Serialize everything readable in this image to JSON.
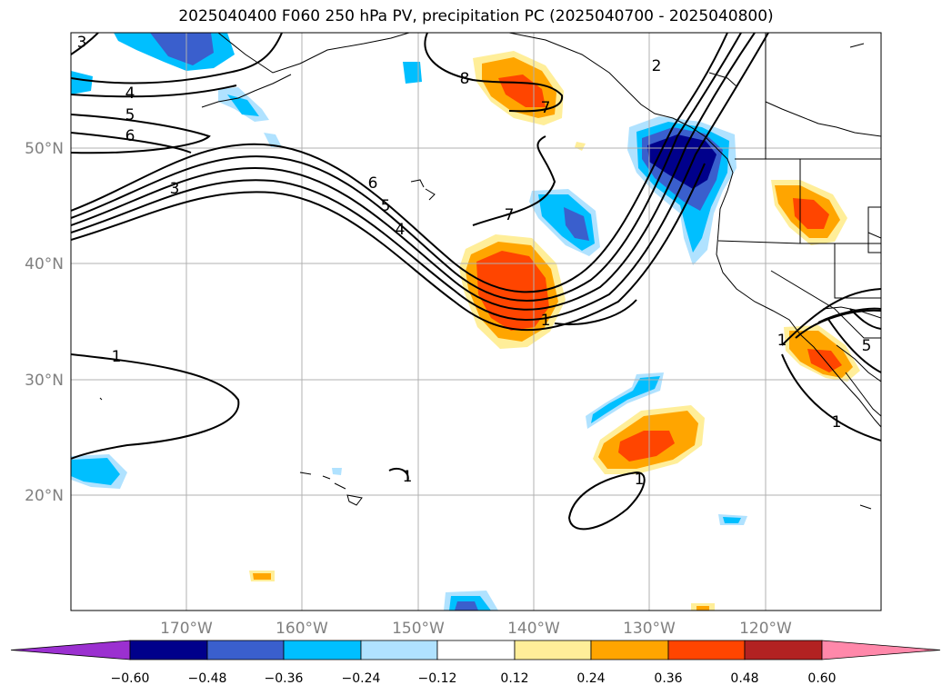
{
  "title": "2025040400 F060 250 hPa PV, precipitation PC (2025040700 - 2025040800)",
  "lat_labels": [
    "50°N",
    "40°N",
    "30°N",
    "20°N"
  ],
  "lon_labels": [
    "170°W",
    "160°W",
    "150°W",
    "140°W",
    "130°W",
    "120°W"
  ],
  "colorbar": {
    "colors": [
      "#9b30d0",
      "#00008b",
      "#3a5fcd",
      "#00bfff",
      "#b0e2ff",
      "#ffffff",
      "#ffee99",
      "#ffa500",
      "#ff4500",
      "#b22222",
      "#ff88aa"
    ],
    "tick_labels": [
      "−0.60",
      "−0.48",
      "−0.36",
      "−0.24",
      "−0.12",
      "0.12",
      "0.24",
      "0.36",
      "0.48",
      "0.60"
    ]
  },
  "contour_labels": [
    "3",
    "4",
    "5",
    "6",
    "3",
    "6",
    "5",
    "4",
    "8",
    "7",
    "7",
    "1",
    "2",
    "1",
    "1",
    "1",
    "1",
    "5",
    "1"
  ]
}
